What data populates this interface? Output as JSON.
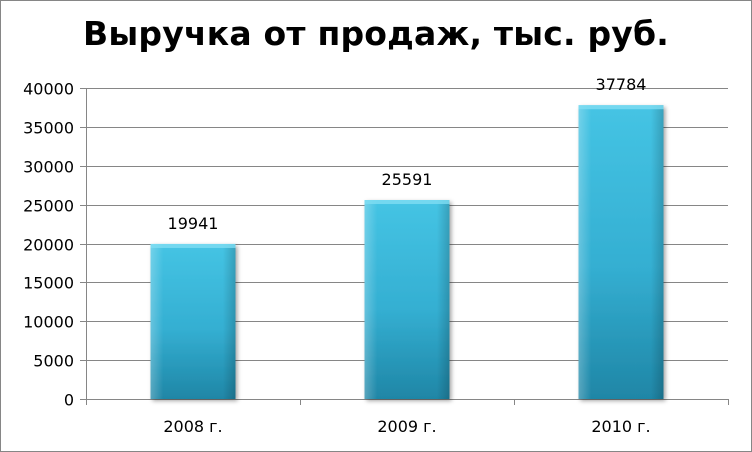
{
  "chart_data": {
    "type": "bar",
    "title": "Выручка от продаж, тыс. руб.",
    "categories": [
      "2008 г.",
      "2009 г.",
      "2010 г."
    ],
    "values": [
      19941,
      25591,
      37784
    ],
    "data_labels": [
      "19941",
      "25591",
      "37784"
    ],
    "ylim": [
      0,
      40000
    ],
    "y_ticks": [
      0,
      5000,
      10000,
      15000,
      20000,
      25000,
      30000,
      35000,
      40000
    ],
    "y_tick_labels": [
      "0",
      "5000",
      "10000",
      "15000",
      "20000",
      "25000",
      "30000",
      "35000",
      "40000"
    ],
    "xlabel": "",
    "ylabel": "",
    "grid": true,
    "legend": "none",
    "colors": {
      "bar": "#3CB8DA",
      "bar_dark": "#1E87A4",
      "grid": "#868686"
    }
  }
}
